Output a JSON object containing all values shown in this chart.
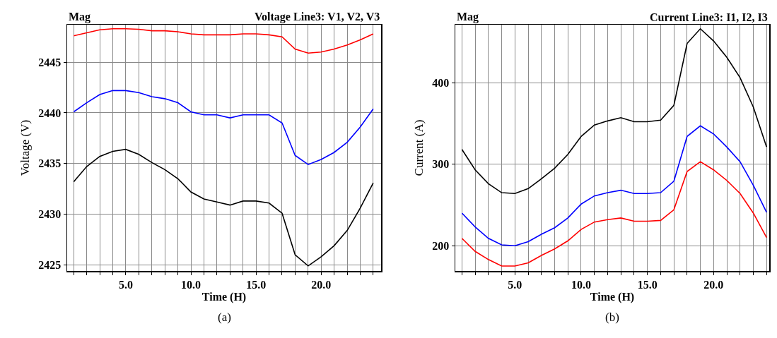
{
  "chart_data": [
    {
      "type": "line",
      "title": "Voltage Line3: V1, V2, V3",
      "xlabel": "Time (H)",
      "ylabel": "Voltage (V)",
      "annotations": [
        "Mag",
        "(a)"
      ],
      "x": [
        1,
        2,
        3,
        4,
        5,
        6,
        7,
        8,
        9,
        10,
        11,
        12,
        13,
        14,
        15,
        16,
        17,
        18,
        19,
        20,
        21,
        22,
        23,
        24
      ],
      "series": [
        {
          "color": "#ff0000",
          "values": [
            2447.6,
            2447.9,
            2448.2,
            2448.3,
            2448.3,
            2448.25,
            2448.1,
            2448.1,
            2448.0,
            2447.8,
            2447.7,
            2447.7,
            2447.7,
            2447.8,
            2447.8,
            2447.7,
            2447.5,
            2446.3,
            2445.9,
            2446.0,
            2446.3,
            2446.7,
            2447.2,
            2447.8
          ]
        },
        {
          "color": "#0000ff",
          "values": [
            2440.1,
            2441.0,
            2441.8,
            2442.2,
            2442.2,
            2442.0,
            2441.6,
            2441.4,
            2441.0,
            2440.1,
            2439.8,
            2439.8,
            2439.5,
            2439.8,
            2439.8,
            2439.8,
            2439.0,
            2435.8,
            2434.9,
            2435.4,
            2436.1,
            2437.1,
            2438.6,
            2440.4
          ]
        },
        {
          "color": "#000000",
          "values": [
            2433.2,
            2434.7,
            2435.7,
            2436.2,
            2436.4,
            2435.9,
            2435.1,
            2434.4,
            2433.5,
            2432.2,
            2431.5,
            2431.2,
            2430.9,
            2431.3,
            2431.3,
            2431.1,
            2430.1,
            2426.0,
            2424.9,
            2425.8,
            2426.9,
            2428.4,
            2430.6,
            2433.1
          ]
        }
      ],
      "xlim": [
        0.5,
        24.6
      ],
      "ylim": [
        2424.4,
        2448.7
      ],
      "xticks": [
        {
          "value": 1,
          "label": null
        },
        {
          "value": 2,
          "label": null
        },
        {
          "value": 3,
          "label": null
        },
        {
          "value": 4,
          "label": null
        },
        {
          "value": 5,
          "label": "5.0"
        },
        {
          "value": 6,
          "label": null
        },
        {
          "value": 7,
          "label": null
        },
        {
          "value": 8,
          "label": null
        },
        {
          "value": 9,
          "label": null
        },
        {
          "value": 10,
          "label": "10.0"
        },
        {
          "value": 11,
          "label": null
        },
        {
          "value": 12,
          "label": null
        },
        {
          "value": 13,
          "label": null
        },
        {
          "value": 14,
          "label": null
        },
        {
          "value": 15,
          "label": "15.0"
        },
        {
          "value": 16,
          "label": null
        },
        {
          "value": 17,
          "label": null
        },
        {
          "value": 18,
          "label": null
        },
        {
          "value": 19,
          "label": null
        },
        {
          "value": 20,
          "label": "20.0"
        },
        {
          "value": 21,
          "label": null
        },
        {
          "value": 22,
          "label": null
        },
        {
          "value": 23,
          "label": null
        },
        {
          "value": 24,
          "label": null
        }
      ],
      "yticks": [
        2425,
        2430,
        2435,
        2440,
        2445
      ],
      "grid": true,
      "marker": "none",
      "line_style": "solid"
    },
    {
      "type": "line",
      "title": "Current Line3: I1, I2, I3",
      "xlabel": "Time (H)",
      "ylabel": "Current (A)",
      "annotations": [
        "Mag",
        "(b)"
      ],
      "x": [
        1,
        2,
        3,
        4,
        5,
        6,
        7,
        8,
        9,
        10,
        11,
        12,
        13,
        14,
        15,
        16,
        17,
        18,
        19,
        20,
        21,
        22,
        23,
        24
      ],
      "series": [
        {
          "color": "#000000",
          "values": [
            318,
            293,
            276,
            265,
            264,
            270,
            282,
            295,
            312,
            334,
            348,
            353,
            357,
            352,
            352,
            354,
            372,
            448,
            466,
            451,
            431,
            406,
            370,
            321
          ]
        },
        {
          "color": "#0000ff",
          "values": [
            240,
            223,
            209,
            201,
            200,
            205,
            214,
            222,
            234,
            251,
            261,
            265,
            268,
            264,
            264,
            265,
            279,
            334,
            347,
            337,
            321,
            303,
            274,
            241
          ]
        },
        {
          "color": "#ff0000",
          "values": [
            209,
            193,
            183,
            175,
            175,
            179,
            188,
            196,
            206,
            220,
            229,
            232,
            234,
            230,
            230,
            231,
            244,
            291,
            303,
            293,
            280,
            264,
            240,
            210
          ]
        }
      ],
      "xlim": [
        0.5,
        24.2
      ],
      "ylim": [
        169,
        471
      ],
      "xticks": [
        {
          "value": 1,
          "label": null
        },
        {
          "value": 2,
          "label": null
        },
        {
          "value": 3,
          "label": null
        },
        {
          "value": 4,
          "label": null
        },
        {
          "value": 5,
          "label": "5.0"
        },
        {
          "value": 6,
          "label": null
        },
        {
          "value": 7,
          "label": null
        },
        {
          "value": 8,
          "label": null
        },
        {
          "value": 9,
          "label": null
        },
        {
          "value": 10,
          "label": "10.0"
        },
        {
          "value": 11,
          "label": null
        },
        {
          "value": 12,
          "label": null
        },
        {
          "value": 13,
          "label": null
        },
        {
          "value": 14,
          "label": null
        },
        {
          "value": 15,
          "label": "15.0"
        },
        {
          "value": 16,
          "label": null
        },
        {
          "value": 17,
          "label": null
        },
        {
          "value": 18,
          "label": null
        },
        {
          "value": 19,
          "label": null
        },
        {
          "value": 20,
          "label": "20.0"
        },
        {
          "value": 21,
          "label": null
        },
        {
          "value": 22,
          "label": null
        },
        {
          "value": 23,
          "label": null
        },
        {
          "value": 24,
          "label": null
        }
      ],
      "yticks": [
        200,
        300,
        400
      ],
      "grid": true,
      "marker": "none",
      "line_style": "solid"
    }
  ]
}
